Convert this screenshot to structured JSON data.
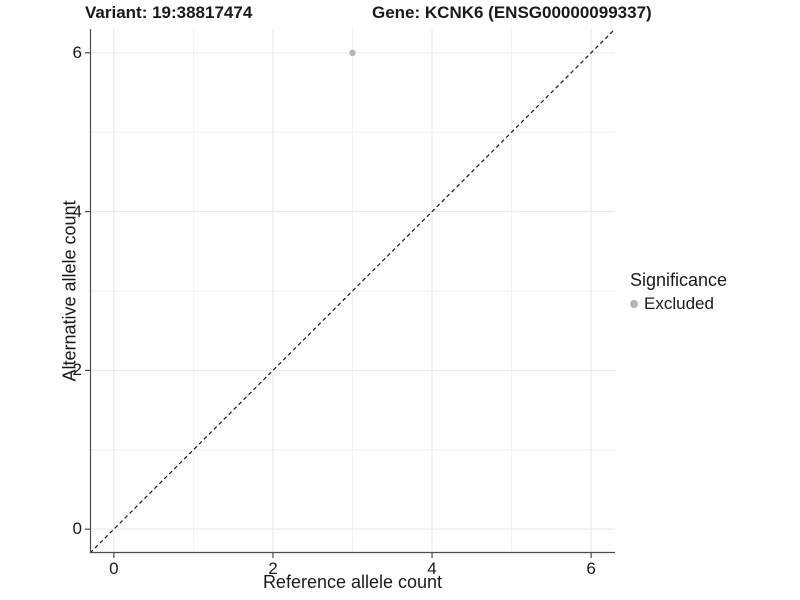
{
  "header": {
    "variant_title": "Variant: 19:38817474",
    "gene_title": "Gene: KCNK6 (ENSG00000099337)"
  },
  "legend": {
    "title": "Significance",
    "items": [
      {
        "label": "Excluded",
        "color": "#b5b5b5"
      }
    ]
  },
  "chart_data": {
    "type": "scatter",
    "xlabel": "Reference allele count",
    "ylabel": "Alternative allele count",
    "xlim": [
      -0.3,
      6.3
    ],
    "ylim": [
      -0.3,
      6.3
    ],
    "x_ticks": [
      0,
      2,
      4,
      6
    ],
    "y_ticks": [
      0,
      2,
      4,
      6
    ],
    "minor_gridlines_x": [
      1,
      3,
      5
    ],
    "minor_gridlines_y": [
      1,
      3,
      5
    ],
    "grid": true,
    "legend_position": "right",
    "points": [
      {
        "x": 3,
        "y": 6,
        "significance": "Excluded",
        "color": "#b5b5b5",
        "radius": 3.2
      }
    ],
    "reference_line": {
      "type": "identity",
      "style": "dashed",
      "color": "#1a1a1a"
    },
    "colors": {
      "grid_major": "#e7e7e7",
      "grid_minor": "#f0f0f0",
      "axis_line": "#4d4d4d",
      "tick_mark": "#4d4d4d",
      "background": "#ffffff"
    }
  }
}
